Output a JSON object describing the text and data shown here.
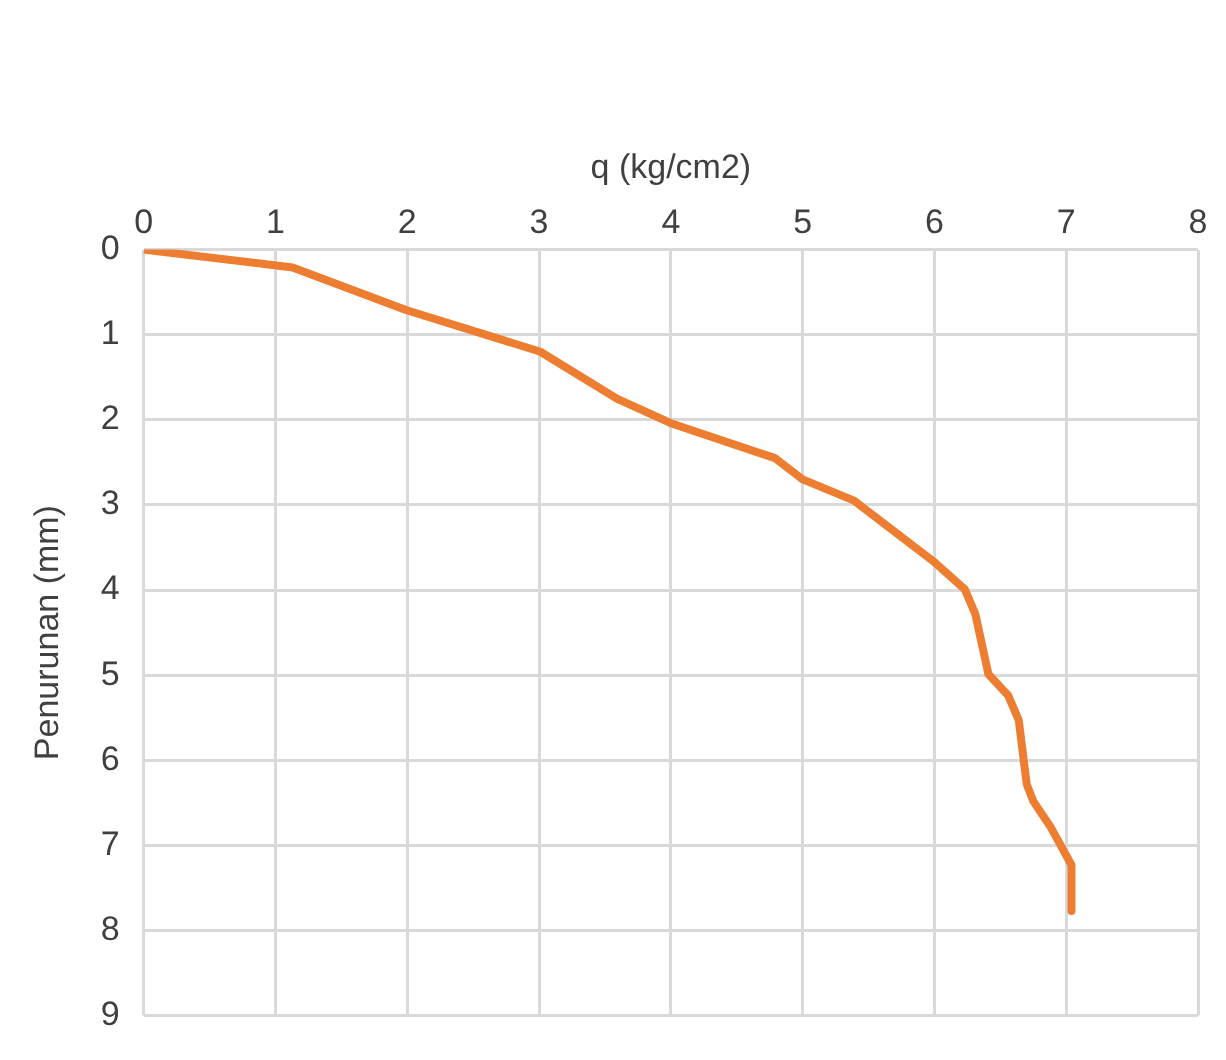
{
  "chart_data": {
    "type": "line",
    "xlabel": "q (kg/cm2)",
    "ylabel": "Penurunan (mm)",
    "xlim": [
      0,
      8
    ],
    "xticks": [
      0,
      1,
      2,
      3,
      4,
      5,
      6,
      7,
      8
    ],
    "ylim": [
      9,
      0
    ],
    "yticks": [
      0,
      1,
      2,
      3,
      4,
      5,
      6,
      7,
      8,
      9
    ],
    "series": [
      {
        "color": "#ed7d31",
        "x": [
          0,
          1.13,
          1.99,
          3.01,
          3.59,
          4.0,
          4.79,
          5.0,
          5.39,
          5.99,
          6.23,
          6.31,
          6.41,
          6.56,
          6.64,
          6.7,
          6.75,
          6.88,
          7.04,
          7.04
        ],
        "values": [
          0,
          0.21,
          0.71,
          1.2,
          1.75,
          2.04,
          2.45,
          2.7,
          2.95,
          3.66,
          3.99,
          4.28,
          4.99,
          5.24,
          5.53,
          6.28,
          6.48,
          6.78,
          7.23,
          7.77
        ]
      }
    ],
    "grid": true,
    "legend": false,
    "marker": "none",
    "line_style": "solid"
  }
}
